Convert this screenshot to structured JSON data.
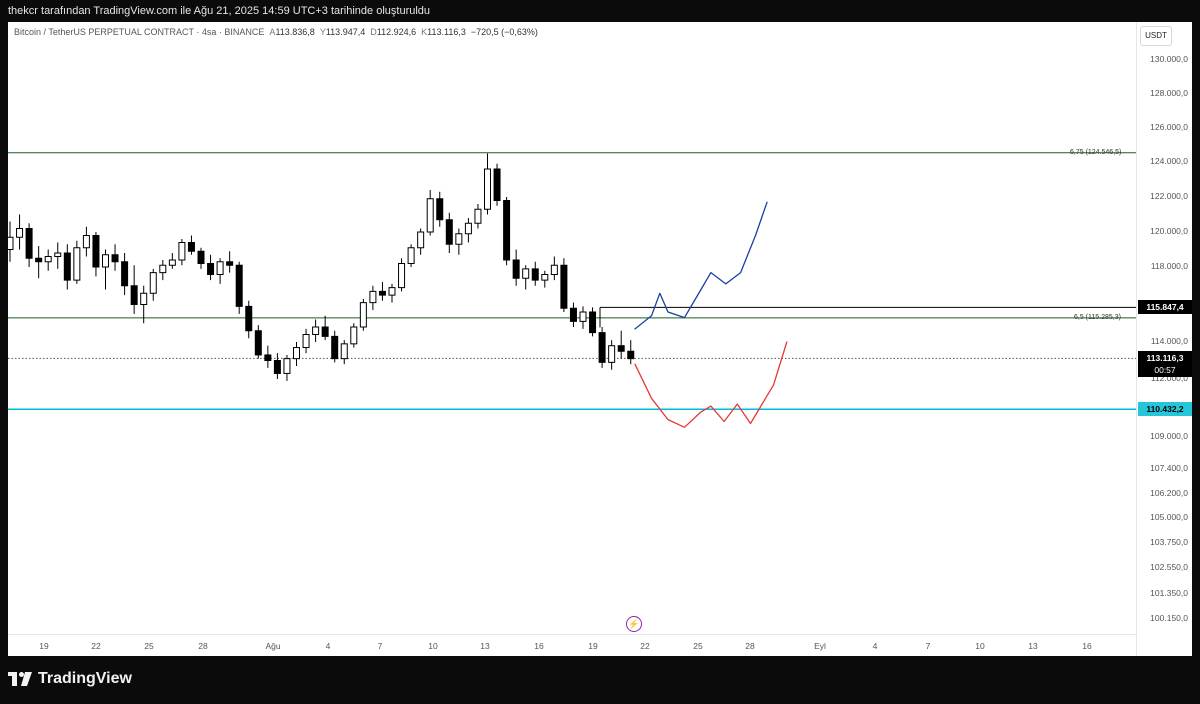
{
  "header": {
    "caption": "thekcr tarafından TradingView.com ile Ağu 21, 2025 14:59 UTC+3 tarihinde oluşturuldu"
  },
  "legend": {
    "symbol": "Bitcoin / TetherUS PERPETUAL CONTRACT · 4sa · BINANCE",
    "open_key": "A",
    "open": "113.836,8",
    "high_key": "Y",
    "high": "113.947,4",
    "low_key": "D",
    "low": "112.924,6",
    "close_key": "K",
    "close": "113.116,3",
    "change": "−720,5 (−0,63%)"
  },
  "currency": "USDT",
  "footer": {
    "brand": "TradingView"
  },
  "colors": {
    "up": "#000000",
    "down": "#000000",
    "hline_green": "#1b5e20",
    "hline_cyan": "#00bcd4",
    "bull_path": "#1a3fa0",
    "bear_path": "#e53935"
  },
  "chart_data": {
    "type": "candlestick",
    "y_axis": {
      "labels": [
        "130.000,0",
        "128.000,0",
        "126.000,0",
        "124.000,0",
        "122.000,0",
        "120.000,0",
        "118.000,0",
        "114.000,0",
        "112.000,0",
        "109.000,0",
        "107.400,0",
        "106.200,0",
        "105.000,0",
        "103.750,0",
        "102.550,0",
        "101.350,0",
        "100.150,0"
      ],
      "values": [
        130000,
        128000,
        126000,
        124000,
        122000,
        120000,
        118000,
        114000,
        112000,
        109000,
        107400,
        106200,
        105000,
        103750,
        102550,
        101350,
        100150
      ]
    },
    "x_axis": {
      "labels": [
        "19",
        "22",
        "25",
        "28",
        "Ağu",
        "4",
        "7",
        "10",
        "13",
        "16",
        "19",
        "22",
        "25",
        "28",
        "Eyl",
        "4",
        "7",
        "10",
        "13",
        "16"
      ]
    },
    "price_tags": [
      {
        "text": "115.847,4",
        "value": 115847.4,
        "style": "black"
      },
      {
        "text": "113.116,3",
        "sub": "00:57",
        "value": 113116.3,
        "style": "black"
      },
      {
        "text": "110.432,2",
        "value": 110432.2,
        "style": "cyan"
      }
    ],
    "horizontal_lines": [
      {
        "value": 124546.5,
        "label": "6,75 (124.546,5)",
        "color": "#1b5e20"
      },
      {
        "value": 115285.3,
        "label": "6,5 (115.285,3)",
        "color": "#1b5e20"
      },
      {
        "value": 110432.2,
        "label": "",
        "color": "#00bcd4"
      },
      {
        "value": 113116.3,
        "label": "",
        "color": "#555555",
        "dotted": true
      }
    ],
    "recent_high": 115847.4,
    "candles_approx": [
      [
        119000,
        120600,
        118300,
        119700
      ],
      [
        119700,
        121000,
        119000,
        120200
      ],
      [
        120200,
        120500,
        118000,
        118500
      ],
      [
        118500,
        119200,
        117400,
        118300
      ],
      [
        118300,
        119000,
        117800,
        118600
      ],
      [
        118600,
        119400,
        117900,
        118800
      ],
      [
        118800,
        119300,
        116800,
        117300
      ],
      [
        117300,
        119500,
        117100,
        119100
      ],
      [
        119100,
        120300,
        118600,
        119800
      ],
      [
        119800,
        120000,
        117500,
        118000
      ],
      [
        118000,
        119000,
        116800,
        118700
      ],
      [
        118700,
        119300,
        117800,
        118300
      ],
      [
        118300,
        118800,
        116500,
        117000
      ],
      [
        117000,
        118100,
        115500,
        116000
      ],
      [
        116000,
        117000,
        115000,
        116600
      ],
      [
        116600,
        117900,
        116200,
        117700
      ],
      [
        117700,
        118400,
        117300,
        118100
      ],
      [
        118100,
        118800,
        117900,
        118400
      ],
      [
        118400,
        119600,
        118100,
        119400
      ],
      [
        119400,
        119800,
        118700,
        118900
      ],
      [
        118900,
        119100,
        117900,
        118200
      ],
      [
        118200,
        118700,
        117300,
        117600
      ],
      [
        117600,
        118500,
        117100,
        118300
      ],
      [
        118300,
        118900,
        117700,
        118100
      ],
      [
        118100,
        118300,
        115500,
        115900
      ],
      [
        115900,
        116200,
        114200,
        114600
      ],
      [
        114600,
        114900,
        113100,
        113300
      ],
      [
        113300,
        113800,
        112600,
        113000
      ],
      [
        113000,
        113400,
        112000,
        112300
      ],
      [
        112300,
        113300,
        111900,
        113100
      ],
      [
        113100,
        114000,
        112700,
        113700
      ],
      [
        113700,
        114700,
        113400,
        114400
      ],
      [
        114400,
        115200,
        114000,
        114800
      ],
      [
        114800,
        115400,
        114100,
        114300
      ],
      [
        114300,
        114600,
        112900,
        113100
      ],
      [
        113100,
        114100,
        112800,
        113900
      ],
      [
        113900,
        115000,
        113700,
        114800
      ],
      [
        114800,
        116300,
        114600,
        116100
      ],
      [
        116100,
        117000,
        115700,
        116700
      ],
      [
        116700,
        117200,
        116200,
        116500
      ],
      [
        116500,
        117100,
        116100,
        116900
      ],
      [
        116900,
        118500,
        116700,
        118200
      ],
      [
        118200,
        119300,
        118000,
        119100
      ],
      [
        119100,
        120200,
        118700,
        120000
      ],
      [
        120000,
        122400,
        119800,
        121900
      ],
      [
        121900,
        122300,
        120300,
        120700
      ],
      [
        120700,
        121100,
        118800,
        119300
      ],
      [
        119300,
        120200,
        118700,
        119900
      ],
      [
        119900,
        120800,
        119400,
        120500
      ],
      [
        120500,
        121600,
        120200,
        121300
      ],
      [
        121300,
        124500,
        121000,
        123600
      ],
      [
        123600,
        123900,
        121500,
        121800
      ],
      [
        121800,
        122000,
        118100,
        118400
      ],
      [
        118400,
        119000,
        117000,
        117400
      ],
      [
        117400,
        118100,
        116800,
        117900
      ],
      [
        117900,
        118300,
        117000,
        117300
      ],
      [
        117300,
        117800,
        116900,
        117600
      ],
      [
        117600,
        118600,
        117300,
        118100
      ],
      [
        118100,
        118500,
        115600,
        115800
      ],
      [
        115800,
        116100,
        114800,
        115100
      ],
      [
        115100,
        115900,
        114700,
        115600
      ],
      [
        115600,
        115847,
        114300,
        114500
      ],
      [
        114500,
        114800,
        112600,
        112900
      ],
      [
        112900,
        114100,
        112500,
        113800
      ],
      [
        113800,
        114600,
        113100,
        113500
      ],
      [
        113500,
        114100,
        112800,
        113100
      ]
    ],
    "projection_paths": [
      {
        "name": "",
        "color": "#1a3fa0",
        "points": [
          [
            0,
            114700
          ],
          [
            1,
            115400
          ],
          [
            1.5,
            116600
          ],
          [
            2,
            115600
          ],
          [
            3,
            115300
          ],
          [
            4,
            116800
          ],
          [
            4.6,
            117700
          ],
          [
            5.5,
            117100
          ],
          [
            6.4,
            117700
          ],
          [
            7.3,
            119800
          ],
          [
            8,
            121700
          ]
        ]
      },
      {
        "name": "",
        "color": "#e53935",
        "points": [
          [
            0,
            112800
          ],
          [
            1,
            111000
          ],
          [
            2,
            109900
          ],
          [
            3,
            109500
          ],
          [
            4,
            110300
          ],
          [
            4.6,
            110600
          ],
          [
            5.4,
            109800
          ],
          [
            6.2,
            110700
          ],
          [
            7,
            109700
          ],
          [
            8.4,
            111700
          ],
          [
            9.2,
            114000
          ]
        ]
      }
    ]
  }
}
